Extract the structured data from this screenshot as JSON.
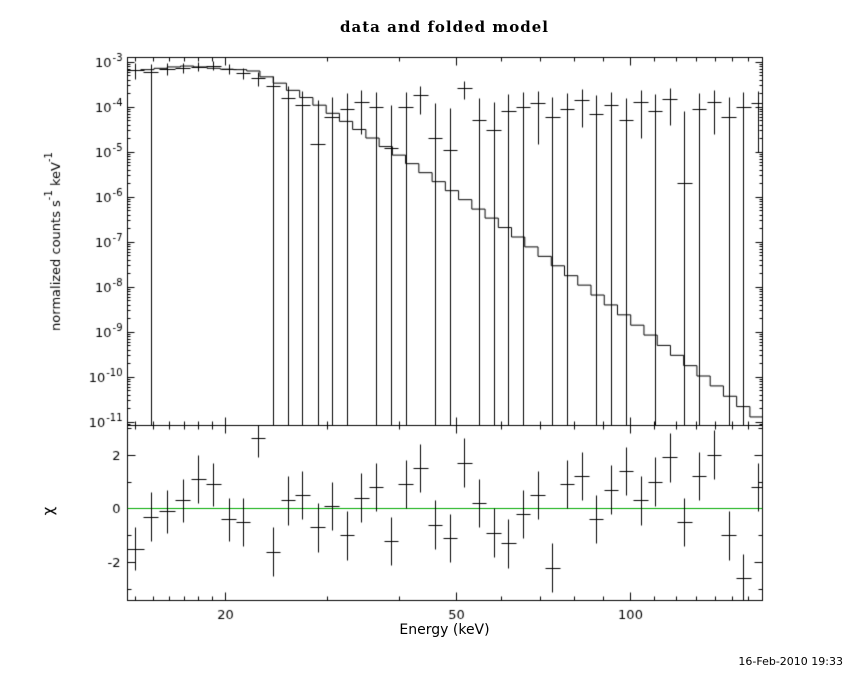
{
  "page": {
    "title": "data and folded model",
    "timestamp": "16-Feb-2010 19:33",
    "background": "#ffffff",
    "frame_color": "#000000"
  },
  "chart_data": [
    {
      "type": "line",
      "panel": "spectrum",
      "title": "data and folded model",
      "xlabel": "Energy (keV)",
      "ylabel": "normalized counts s^-1 keV^-1",
      "xscale": "log",
      "yscale": "log",
      "xlim": [
        13.55,
        169.0
      ],
      "ylim_log10": [
        -11.07,
        -2.89
      ],
      "x_ticks_labeled": [
        20,
        50,
        100
      ],
      "x_ticks_minor": [
        14,
        15,
        16,
        17,
        18,
        19,
        30,
        40,
        60,
        70,
        80,
        90,
        110,
        120,
        130,
        140,
        150,
        160
      ],
      "y_tick_exponents": [
        -3,
        -4,
        -5,
        -6,
        -7,
        -8,
        -9,
        -10,
        -11
      ],
      "model_histogram": {
        "log10_e_start": 1.132,
        "log10_e_step": 0.022854,
        "values_log10": [
          -3.18,
          -3.16,
          -3.13,
          -3.1,
          -3.08,
          -3.1,
          -3.13,
          -3.15,
          -3.16,
          -3.19,
          -3.32,
          -3.46,
          -3.62,
          -3.78,
          -3.95,
          -4.13,
          -4.31,
          -4.49,
          -4.68,
          -4.87,
          -5.06,
          -5.25,
          -5.45,
          -5.65,
          -5.85,
          -6.05,
          -6.26,
          -6.46,
          -6.67,
          -6.88,
          -7.1,
          -7.31,
          -7.52,
          -7.74,
          -7.95,
          -8.17,
          -8.39,
          -8.61,
          -8.84,
          -9.06,
          -9.29,
          -9.51,
          -9.74,
          -9.97,
          -10.19,
          -10.42,
          -10.65,
          -10.88
        ]
      },
      "data_points_format": [
        "energy_keV",
        "half_width_keV",
        "value",
        "err_low_bound",
        "err_high_bound"
      ],
      "data_points": [
        [
          14.0,
          0.5,
          0.00065,
          0.00042,
          0.00095
        ],
        [
          14.9,
          0.45,
          0.0006,
          0,
          0.0009
        ],
        [
          15.9,
          0.5,
          0.0007,
          0.0005,
          0.00093
        ],
        [
          16.9,
          0.5,
          0.00074,
          0.00056,
          0.00095
        ],
        [
          18.0,
          0.55,
          0.00079,
          0.00062,
          0.00099
        ],
        [
          19.1,
          0.55,
          0.00083,
          0.00066,
          0.00103
        ],
        [
          20.3,
          0.6,
          0.0007,
          0.00054,
          0.00088
        ],
        [
          21.5,
          0.6,
          0.00056,
          0.00041,
          0.00073
        ],
        [
          22.8,
          0.65,
          0.00044,
          0.00029,
          0.00061
        ],
        [
          24.2,
          0.7,
          0.00029,
          0,
          0.00048
        ],
        [
          25.7,
          0.75,
          0.00016,
          0,
          0.00029
        ],
        [
          27.2,
          0.8,
          0.00011,
          0,
          0.00023
        ],
        [
          28.9,
          0.85,
          1.5e-05,
          0,
          0.00014
        ],
        [
          30.6,
          0.9,
          6e-05,
          0,
          0.00017
        ],
        [
          32.5,
          0.95,
          9e-05,
          0,
          0.0002
        ],
        [
          34.4,
          1.0,
          0.00013,
          2.5e-05,
          0.00024
        ],
        [
          36.5,
          1.05,
          0.0001,
          0,
          0.00021
        ],
        [
          38.7,
          1.1,
          1.2e-05,
          0,
          0.00011
        ],
        [
          41.0,
          1.2,
          0.0001,
          0,
          0.00021
        ],
        [
          43.5,
          1.25,
          0.00018,
          7e-05,
          0.00029
        ],
        [
          46.1,
          1.3,
          2e-05,
          0,
          0.00012
        ],
        [
          48.9,
          1.4,
          1.1e-05,
          0,
          9.5e-05
        ],
        [
          51.8,
          1.5,
          0.00026,
          0.00015,
          0.00037
        ],
        [
          54.9,
          1.6,
          5e-05,
          0,
          0.00016
        ],
        [
          58.2,
          1.7,
          3e-05,
          0,
          0.00013
        ],
        [
          61.7,
          1.8,
          8e-05,
          0,
          0.00019
        ],
        [
          65.4,
          1.9,
          0.0001,
          0,
          0.00021
        ],
        [
          69.3,
          2.0,
          0.00012,
          1.5e-05,
          0.00023
        ],
        [
          73.5,
          2.1,
          6e-05,
          0,
          0.00017
        ],
        [
          77.9,
          2.2,
          9e-05,
          0,
          0.0002
        ],
        [
          82.6,
          2.4,
          0.00014,
          3.5e-05,
          0.00025
        ],
        [
          87.5,
          2.5,
          7e-05,
          0,
          0.00018
        ],
        [
          92.8,
          2.7,
          0.00011,
          0,
          0.00022
        ],
        [
          98.4,
          2.8,
          5e-05,
          0,
          0.00016
        ],
        [
          104.3,
          3.0,
          0.00013,
          2e-05,
          0.00024
        ],
        [
          110.5,
          3.2,
          8e-05,
          0,
          0.00019
        ],
        [
          117.2,
          3.4,
          0.00015,
          4e-05,
          0.00026
        ],
        [
          124.2,
          3.6,
          2e-06,
          0,
          8e-05
        ],
        [
          131.7,
          3.8,
          9e-05,
          0,
          0.0002
        ],
        [
          139.6,
          4.0,
          0.00013,
          2.5e-05,
          0.00024
        ],
        [
          148.0,
          4.3,
          6e-05,
          0,
          0.00017
        ],
        [
          156.9,
          4.6,
          0.0001,
          0,
          0.00021
        ],
        [
          166.3,
          4.8,
          0.00012,
          1e-05,
          0.00023
        ]
      ]
    },
    {
      "type": "scatter",
      "panel": "residuals",
      "ylabel": "χ",
      "xscale": "log",
      "ylim": [
        -3.4,
        3.1
      ],
      "y_ticks_labeled": [
        -2,
        0,
        2
      ],
      "y_ticks_minor": [
        -3,
        -1,
        1,
        3
      ],
      "zero_line_color": "#00aa00",
      "points_format": [
        "energy_keV",
        "half_width_keV",
        "chi",
        "chi_err"
      ],
      "points": [
        [
          14.0,
          0.5,
          -1.5,
          0.8
        ],
        [
          14.9,
          0.45,
          -0.3,
          0.9
        ],
        [
          15.9,
          0.5,
          -0.1,
          0.8
        ],
        [
          16.9,
          0.5,
          0.3,
          0.8
        ],
        [
          18.0,
          0.55,
          1.1,
          0.9
        ],
        [
          19.1,
          0.55,
          0.9,
          0.8
        ],
        [
          20.3,
          0.6,
          -0.4,
          0.8
        ],
        [
          21.5,
          0.6,
          -0.5,
          0.9
        ],
        [
          22.8,
          0.65,
          2.6,
          0.7
        ],
        [
          24.2,
          0.7,
          -1.6,
          0.9
        ],
        [
          25.7,
          0.75,
          0.3,
          0.9
        ],
        [
          27.2,
          0.8,
          0.5,
          0.9
        ],
        [
          28.9,
          0.85,
          -0.7,
          0.9
        ],
        [
          30.6,
          0.9,
          0.1,
          0.9
        ],
        [
          32.5,
          0.95,
          -1.0,
          0.9
        ],
        [
          34.4,
          1.0,
          0.4,
          0.9
        ],
        [
          36.5,
          1.05,
          0.8,
          0.9
        ],
        [
          38.7,
          1.1,
          -1.2,
          0.9
        ],
        [
          41.0,
          1.2,
          0.9,
          0.9
        ],
        [
          43.5,
          1.25,
          1.5,
          0.9
        ],
        [
          46.1,
          1.3,
          -0.6,
          0.9
        ],
        [
          48.9,
          1.4,
          -1.1,
          0.9
        ],
        [
          51.8,
          1.5,
          1.7,
          0.9
        ],
        [
          54.9,
          1.6,
          0.2,
          0.9
        ],
        [
          58.2,
          1.7,
          -0.9,
          0.9
        ],
        [
          61.7,
          1.8,
          -1.3,
          0.9
        ],
        [
          65.4,
          1.9,
          -0.2,
          0.9
        ],
        [
          69.3,
          2.0,
          0.5,
          0.9
        ],
        [
          73.5,
          2.1,
          -2.2,
          0.9
        ],
        [
          77.9,
          2.2,
          0.9,
          0.9
        ],
        [
          82.6,
          2.4,
          1.2,
          0.9
        ],
        [
          87.5,
          2.5,
          -0.4,
          0.9
        ],
        [
          92.8,
          2.7,
          0.7,
          0.9
        ],
        [
          98.4,
          2.8,
          1.4,
          0.9
        ],
        [
          104.3,
          3.0,
          0.3,
          0.9
        ],
        [
          110.5,
          3.2,
          1.0,
          0.9
        ],
        [
          117.2,
          3.4,
          1.9,
          0.9
        ],
        [
          124.2,
          3.6,
          -0.5,
          0.9
        ],
        [
          131.7,
          3.8,
          1.2,
          0.9
        ],
        [
          139.6,
          4.0,
          2.0,
          0.9
        ],
        [
          148.0,
          4.3,
          -1.0,
          0.9
        ],
        [
          156.9,
          4.6,
          -2.6,
          0.9
        ],
        [
          166.3,
          4.8,
          0.8,
          0.9
        ]
      ]
    }
  ]
}
